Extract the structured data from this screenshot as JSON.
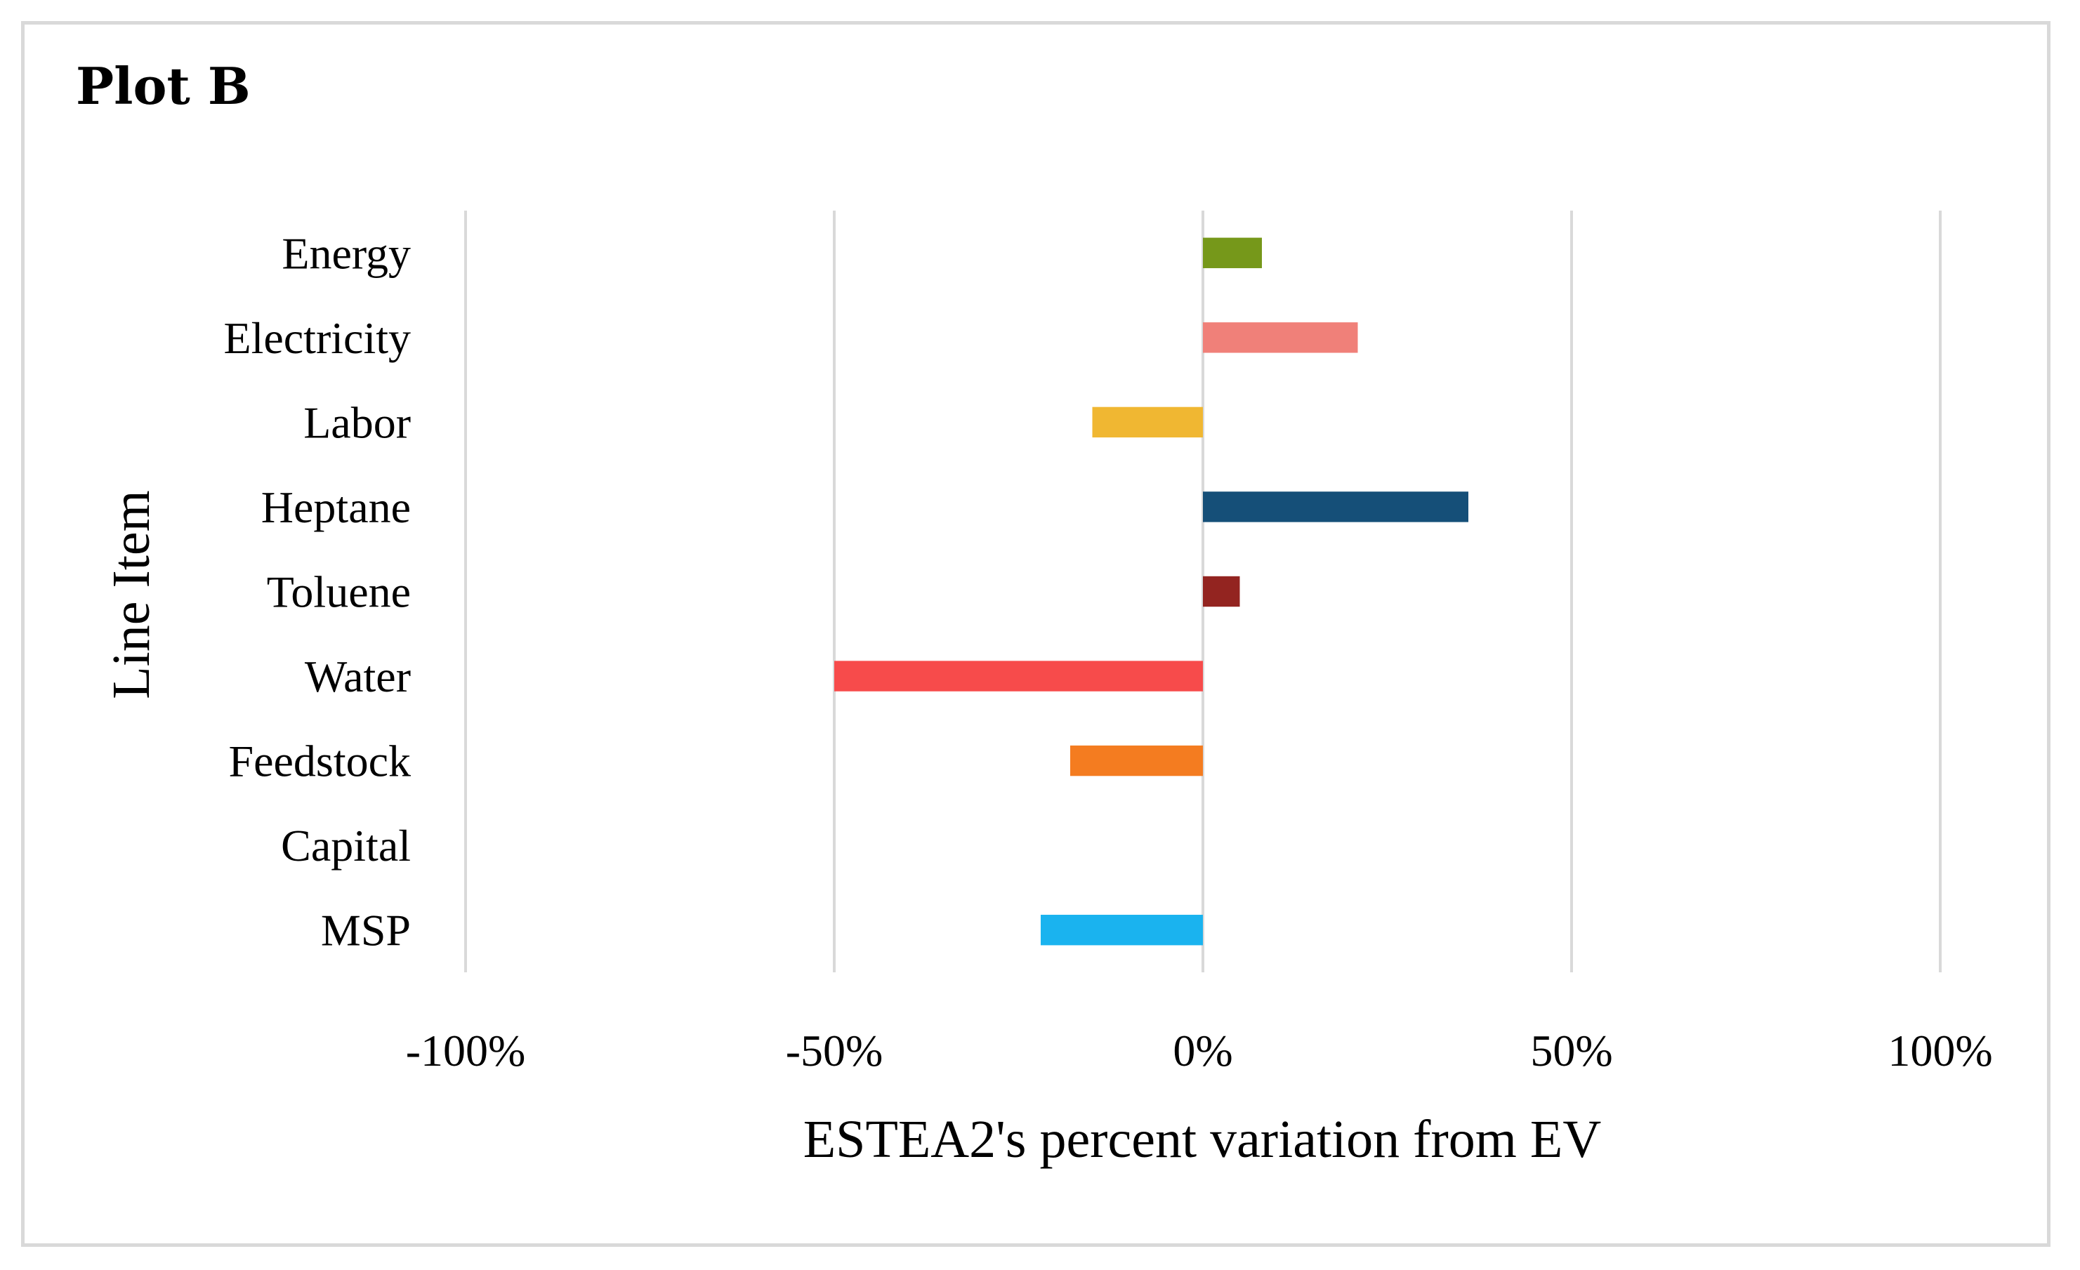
{
  "chart_data": {
    "type": "bar",
    "orientation": "horizontal",
    "title": "Plot B",
    "xlabel": "ESTEA2's percent variation from EV",
    "ylabel": "Line Item",
    "xlim": [
      -100,
      100
    ],
    "xticks": [
      -100,
      -50,
      0,
      50,
      100
    ],
    "xtick_labels": [
      "-100%",
      "-50%",
      "0%",
      "50%",
      "100%"
    ],
    "grid": "vertical",
    "categories": [
      "Energy",
      "Electricity",
      "Labor",
      "Heptane",
      "Toluene",
      "Water",
      "Feedstock",
      "Capital",
      "MSP"
    ],
    "values": [
      8,
      21,
      -15,
      36,
      5,
      -50,
      -18,
      0,
      -22
    ],
    "colors": [
      "#76981a",
      "#f08079",
      "#f0b732",
      "#154f78",
      "#932420",
      "#f74b4b",
      "#f47c20",
      "#ffffff",
      "#1ab3ef"
    ]
  }
}
